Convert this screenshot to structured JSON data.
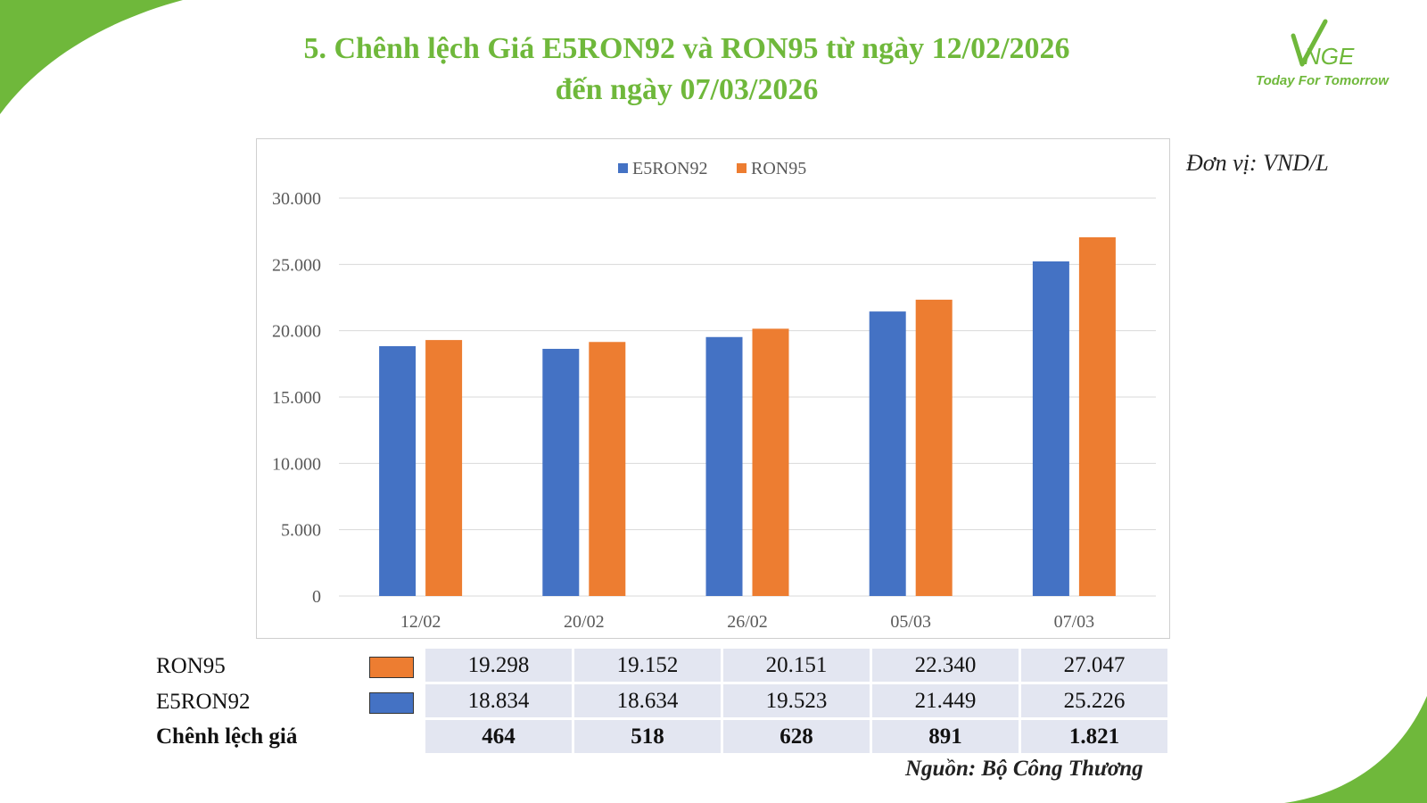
{
  "title_line1": "5. Chênh lệch Giá E5RON92 và RON95 từ ngày 12/02/2026",
  "title_line2": "đến ngày 07/03/2026",
  "logo_text": "VNGE",
  "logo_tagline": "Today For Tomorrow",
  "unit_label": "Đơn vị: VND/L",
  "source_label": "Nguồn: Bộ Công Thương",
  "colors": {
    "accent_green": "#6fb83b",
    "e5ron92": "#4472c4",
    "ron95": "#ed7d31",
    "table_bg": "#e3e6f1"
  },
  "chart_data": {
    "type": "bar",
    "title": "",
    "xlabel": "",
    "ylabel": "",
    "categories": [
      "12/02",
      "20/02",
      "26/02",
      "05/03",
      "07/03"
    ],
    "series": [
      {
        "name": "E5RON92",
        "values": [
          18834,
          18634,
          19523,
          21449,
          25226
        ]
      },
      {
        "name": "RON95",
        "values": [
          19298,
          19152,
          20151,
          22340,
          27047
        ]
      }
    ],
    "ylim": [
      0,
      30000
    ],
    "yticks": [
      "0",
      "5.000",
      "10.000",
      "15.000",
      "20.000",
      "25.000",
      "30.000"
    ],
    "grid": true,
    "legend_position": "top-center"
  },
  "table": {
    "rows": [
      {
        "label": "RON95",
        "swatch": "ron95",
        "values": [
          "19.298",
          "19.152",
          "20.151",
          "22.340",
          "27.047"
        ]
      },
      {
        "label": "E5RON92",
        "swatch": "e5ron92",
        "values": [
          "18.834",
          "18.634",
          "19.523",
          "21.449",
          "25.226"
        ]
      },
      {
        "label": "Chênh lệch giá",
        "values": [
          "464",
          "518",
          "628",
          "891",
          "1.821"
        ]
      }
    ]
  }
}
